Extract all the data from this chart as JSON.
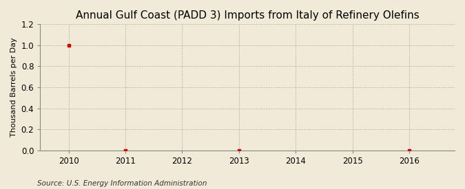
{
  "title": "Annual Gulf Coast (PADD 3) Imports from Italy of Refinery Olefins",
  "ylabel": "Thousand Barrels per Day",
  "source": "Source: U.S. Energy Information Administration",
  "xmin": 2009.5,
  "xmax": 2016.8,
  "ymin": 0.0,
  "ymax": 1.2,
  "yticks": [
    0.0,
    0.2,
    0.4,
    0.6,
    0.8,
    1.0,
    1.2
  ],
  "xticks": [
    2010,
    2011,
    2012,
    2013,
    2014,
    2015,
    2016
  ],
  "data_x": [
    2010,
    2011,
    2013,
    2016
  ],
  "data_y": [
    1.0,
    0.0,
    0.0,
    0.0
  ],
  "marker_color": "#cc0000",
  "background_color": "#f2ead8",
  "grid_color": "#999999",
  "title_fontsize": 11,
  "label_fontsize": 8,
  "tick_fontsize": 8.5,
  "source_fontsize": 7.5
}
